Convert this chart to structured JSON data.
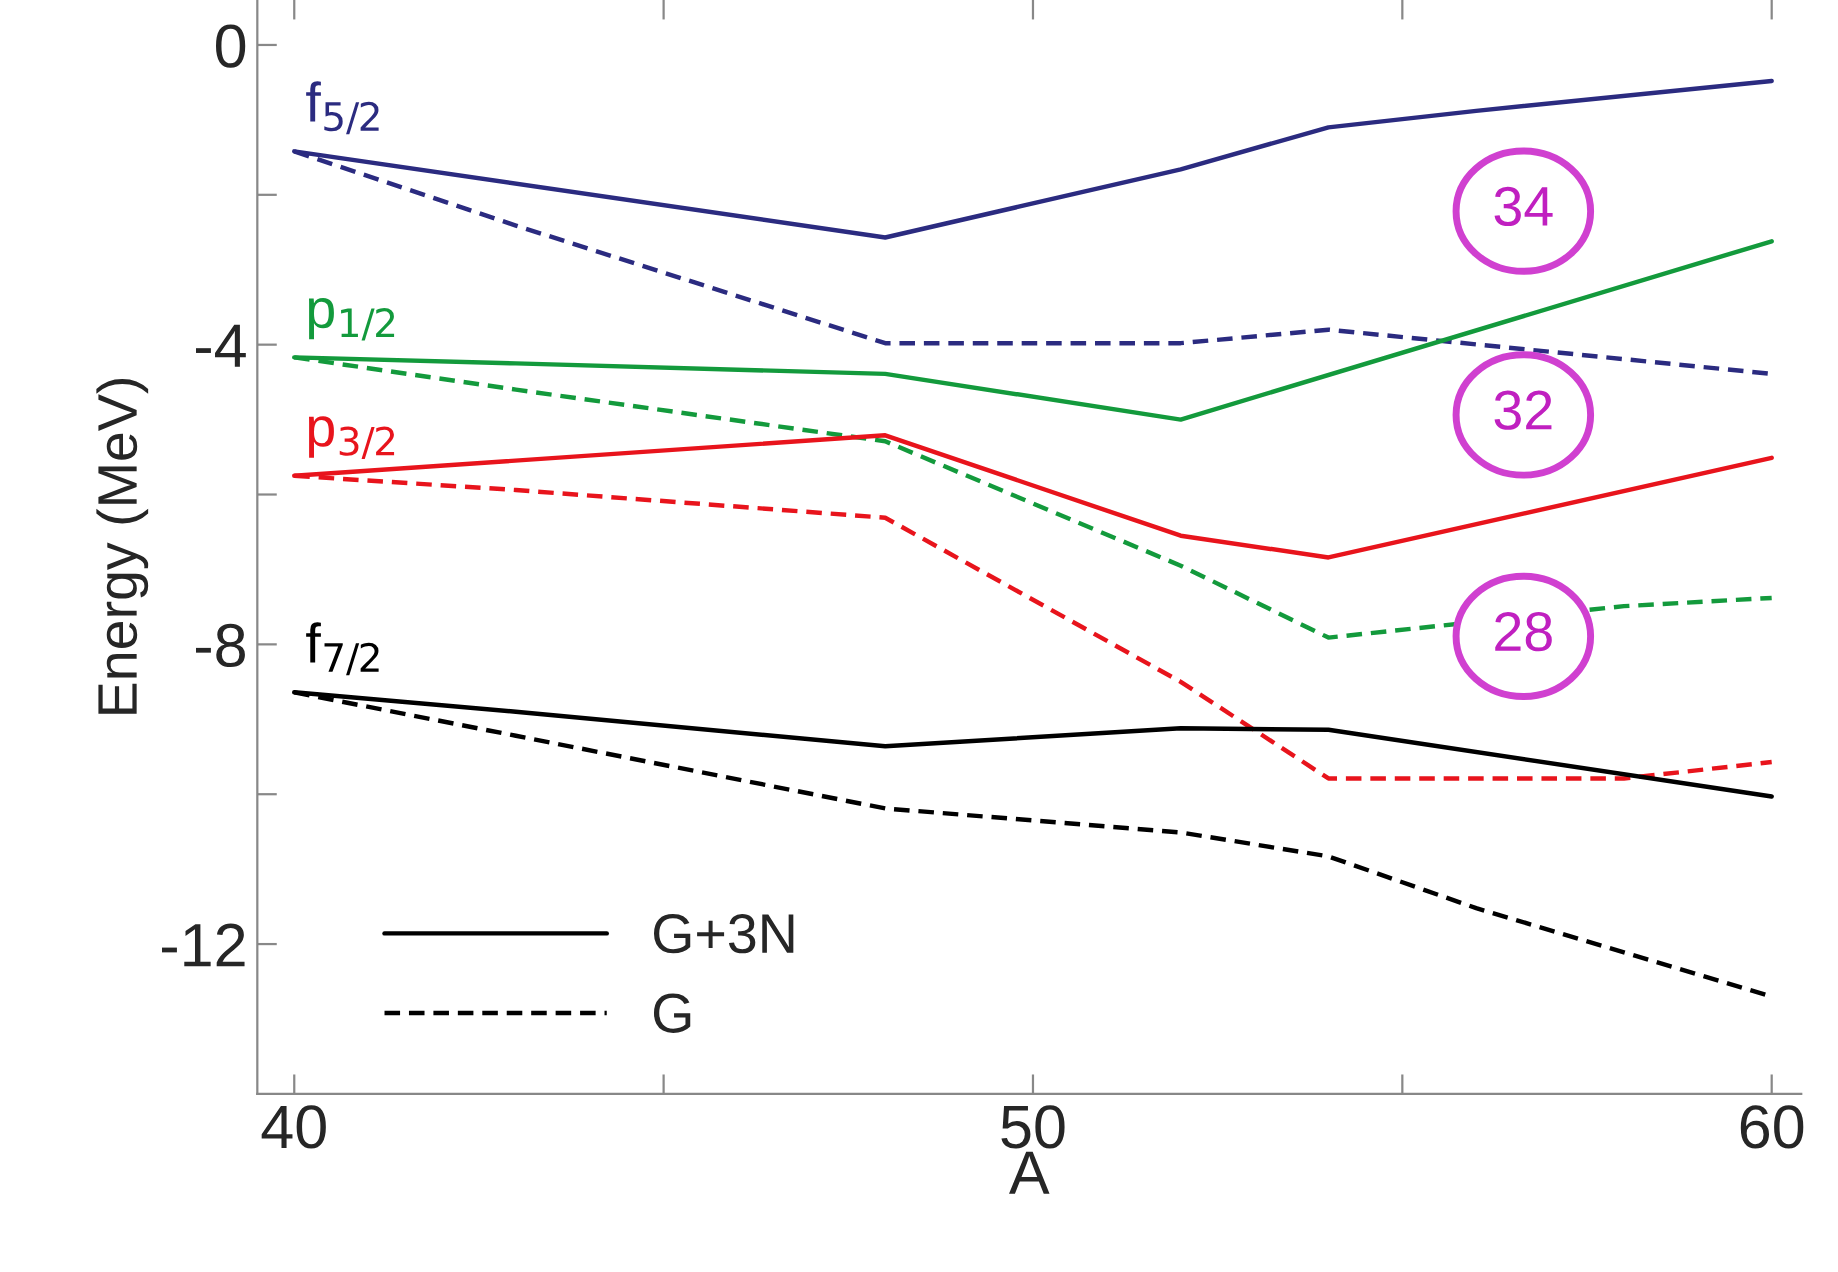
{
  "chart_data": {
    "type": "line",
    "xlabel": "A",
    "ylabel": "Energy (MeV)",
    "xlim": [
      39.5,
      60.4
    ],
    "ylim": [
      -14,
      0.6
    ],
    "xticks": [
      40,
      {
        "value": 45,
        "label": null
      },
      50,
      {
        "value": 55,
        "label": null
      },
      60
    ],
    "yticks": [
      0,
      {
        "value": -2,
        "label": null
      },
      -4,
      {
        "value": -6,
        "label": null
      },
      -8,
      {
        "value": -10,
        "label": null
      },
      -12
    ],
    "grid": false,
    "legend": "bottom left",
    "marker": "none",
    "series": [
      {
        "color": "#2b2b80",
        "line_style": "solid",
        "x": [
          40,
          48,
          52,
          54,
          56,
          60
        ],
        "values": [
          -1.42,
          -2.57,
          -1.66,
          -1.1,
          -0.88,
          -0.48
        ]
      },
      {
        "color": "#2b2b80",
        "line_style": "dashed",
        "x": [
          40,
          43,
          48,
          52,
          54,
          60
        ],
        "values": [
          -1.42,
          -2.41,
          -3.98,
          -3.98,
          -3.8,
          -4.39
        ]
      },
      {
        "color": "#139a3c",
        "line_style": "solid",
        "x": [
          40,
          43,
          48,
          52,
          60
        ],
        "values": [
          -4.17,
          -4.25,
          -4.39,
          -5.0,
          -2.62
        ]
      },
      {
        "color": "#139a3c",
        "line_style": "dashed",
        "x": [
          40,
          43,
          48,
          52,
          54,
          58,
          60
        ],
        "values": [
          -4.17,
          -4.6,
          -5.29,
          -6.95,
          -7.91,
          -7.49,
          -7.38
        ]
      },
      {
        "color": "#e8141c",
        "line_style": "solid",
        "x": [
          40,
          48,
          52,
          54,
          60
        ],
        "values": [
          -5.75,
          -5.21,
          -6.55,
          -6.84,
          -5.51
        ]
      },
      {
        "color": "#e8141c",
        "line_style": "dashed",
        "x": [
          40,
          43,
          48,
          52,
          54,
          58,
          60
        ],
        "values": [
          -5.75,
          -5.94,
          -6.31,
          -8.5,
          -9.79,
          -9.79,
          -9.57
        ]
      },
      {
        "name": "G+3N",
        "color": "#000000",
        "line_style": "solid",
        "x": [
          40,
          43,
          48,
          52,
          54,
          60
        ],
        "values": [
          -8.64,
          -8.9,
          -9.36,
          -9.12,
          -9.14,
          -10.03
        ]
      },
      {
        "name": "G",
        "color": "#000000",
        "line_style": "dashed",
        "x": [
          40,
          43,
          48,
          52,
          54,
          56,
          60
        ],
        "values": [
          -8.64,
          -9.22,
          -10.19,
          -10.51,
          -10.83,
          -11.52,
          -12.7
        ]
      }
    ],
    "annotations": [
      "f$_{5/2}$",
      "p$_{1/2}$",
      "p$_{3/2}$",
      "f$_{7/2}$",
      "34",
      "32",
      "28"
    ]
  }
}
